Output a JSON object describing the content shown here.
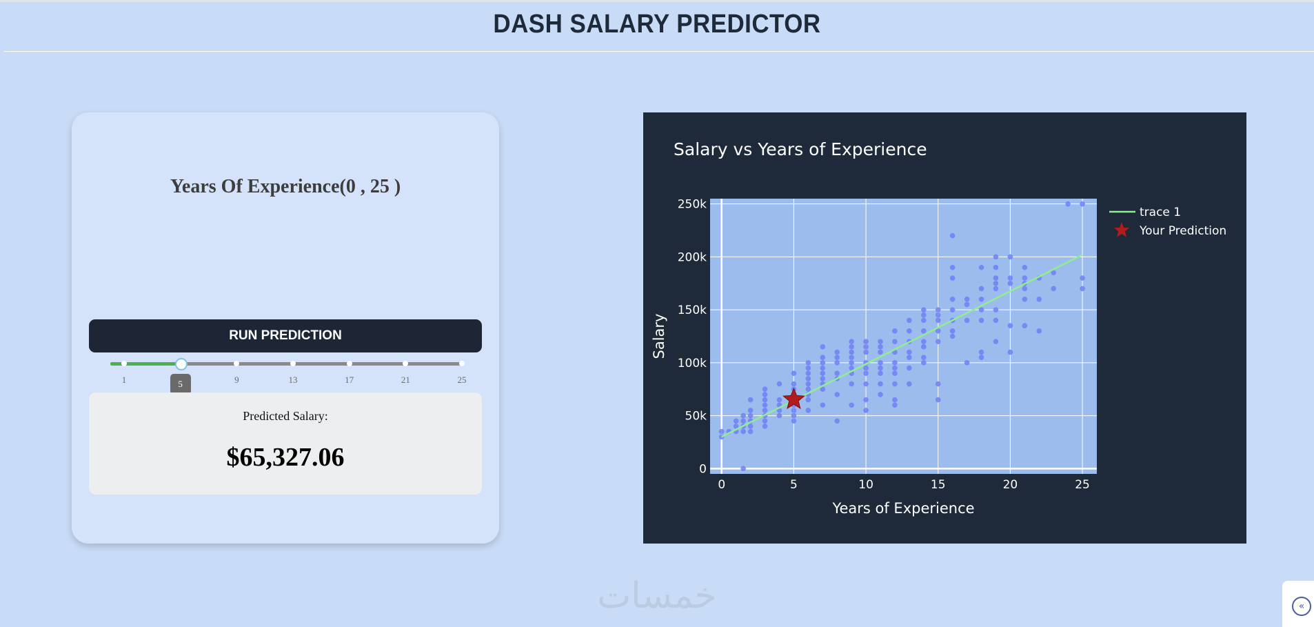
{
  "header": {
    "title": "DASH SALARY PREDICTOR"
  },
  "controls": {
    "experience_label": "Years Of Experience(0 , 25 )",
    "slider": {
      "min": 0,
      "max": 25,
      "value": 5,
      "value_label": "5",
      "marks": [
        "1",
        "5",
        "9",
        "13",
        "17",
        "21",
        "25"
      ],
      "fill_color": "#4caf50"
    },
    "run_button_label": "RUN PREDICTION",
    "result_caption": "Predicted Salary:",
    "result_value": "$65,327.06"
  },
  "chart_data": {
    "type": "scatter",
    "title": "Salary vs Years of Experience",
    "xlabel": "Years of Experience",
    "ylabel": "Salary",
    "xlim": [
      -0.8,
      26
    ],
    "ylim": [
      -5000,
      255000
    ],
    "x_ticks": [
      0,
      5,
      10,
      15,
      20,
      25
    ],
    "x_tick_labels": [
      "0",
      "5",
      "10",
      "15",
      "20",
      "25"
    ],
    "y_ticks": [
      0,
      50000,
      100000,
      150000,
      200000,
      250000
    ],
    "y_tick_labels": [
      "0",
      "50k",
      "100k",
      "150k",
      "200k",
      "250k"
    ],
    "grid": true,
    "legend_position": "top-right",
    "plot_background": "#9dbcee",
    "paper_background": "#1e2a3a",
    "series": [
      {
        "mode": "markers",
        "color": "#6e7ff3",
        "points": [
          [
            0,
            30000
          ],
          [
            0,
            35000
          ],
          [
            0.5,
            35000
          ],
          [
            1,
            35000
          ],
          [
            1,
            40000
          ],
          [
            1,
            45000
          ],
          [
            1.5,
            35000
          ],
          [
            1.5,
            40000
          ],
          [
            1.5,
            45000
          ],
          [
            1.5,
            50000
          ],
          [
            1.5,
            0
          ],
          [
            2,
            35000
          ],
          [
            2,
            40000
          ],
          [
            2,
            45000
          ],
          [
            2,
            50000
          ],
          [
            2,
            55000
          ],
          [
            2,
            65000
          ],
          [
            3,
            40000
          ],
          [
            3,
            45000
          ],
          [
            3,
            50000
          ],
          [
            3,
            55000
          ],
          [
            3,
            60000
          ],
          [
            3,
            65000
          ],
          [
            3,
            70000
          ],
          [
            3,
            75000
          ],
          [
            4,
            50000
          ],
          [
            4,
            55000
          ],
          [
            4,
            60000
          ],
          [
            4,
            65000
          ],
          [
            4,
            80000
          ],
          [
            5,
            45000
          ],
          [
            5,
            50000
          ],
          [
            5,
            55000
          ],
          [
            5,
            60000
          ],
          [
            5,
            70000
          ],
          [
            5,
            75000
          ],
          [
            5,
            80000
          ],
          [
            5,
            90000
          ],
          [
            6,
            55000
          ],
          [
            6,
            65000
          ],
          [
            6,
            70000
          ],
          [
            6,
            75000
          ],
          [
            6,
            80000
          ],
          [
            6,
            85000
          ],
          [
            6,
            90000
          ],
          [
            6,
            95000
          ],
          [
            6,
            100000
          ],
          [
            7,
            60000
          ],
          [
            7,
            75000
          ],
          [
            7,
            80000
          ],
          [
            7,
            85000
          ],
          [
            7,
            90000
          ],
          [
            7,
            95000
          ],
          [
            7,
            100000
          ],
          [
            7,
            105000
          ],
          [
            7,
            115000
          ],
          [
            8,
            45000
          ],
          [
            8,
            70000
          ],
          [
            8,
            85000
          ],
          [
            8,
            90000
          ],
          [
            8,
            100000
          ],
          [
            8,
            105000
          ],
          [
            8,
            110000
          ],
          [
            9,
            60000
          ],
          [
            9,
            80000
          ],
          [
            9,
            90000
          ],
          [
            9,
            95000
          ],
          [
            9,
            100000
          ],
          [
            9,
            105000
          ],
          [
            9,
            110000
          ],
          [
            9,
            115000
          ],
          [
            9,
            120000
          ],
          [
            10,
            55000
          ],
          [
            10,
            65000
          ],
          [
            10,
            80000
          ],
          [
            10,
            90000
          ],
          [
            10,
            95000
          ],
          [
            10,
            100000
          ],
          [
            10,
            110000
          ],
          [
            10,
            115000
          ],
          [
            10,
            120000
          ],
          [
            11,
            70000
          ],
          [
            11,
            80000
          ],
          [
            11,
            90000
          ],
          [
            11,
            95000
          ],
          [
            11,
            100000
          ],
          [
            11,
            110000
          ],
          [
            11,
            115000
          ],
          [
            11,
            120000
          ],
          [
            12,
            60000
          ],
          [
            12,
            65000
          ],
          [
            12,
            80000
          ],
          [
            12,
            90000
          ],
          [
            12,
            95000
          ],
          [
            12,
            100000
          ],
          [
            12,
            110000
          ],
          [
            12,
            120000
          ],
          [
            12,
            130000
          ],
          [
            13,
            80000
          ],
          [
            13,
            95000
          ],
          [
            13,
            105000
          ],
          [
            13,
            110000
          ],
          [
            13,
            120000
          ],
          [
            13,
            130000
          ],
          [
            13,
            140000
          ],
          [
            14,
            100000
          ],
          [
            14,
            105000
          ],
          [
            14,
            115000
          ],
          [
            14,
            120000
          ],
          [
            14,
            130000
          ],
          [
            14,
            140000
          ],
          [
            14,
            145000
          ],
          [
            14,
            150000
          ],
          [
            15,
            65000
          ],
          [
            15,
            80000
          ],
          [
            15,
            120000
          ],
          [
            15,
            130000
          ],
          [
            15,
            140000
          ],
          [
            15,
            145000
          ],
          [
            15,
            150000
          ],
          [
            16,
            125000
          ],
          [
            16,
            130000
          ],
          [
            16,
            140000
          ],
          [
            16,
            150000
          ],
          [
            16,
            160000
          ],
          [
            16,
            180000
          ],
          [
            16,
            190000
          ],
          [
            16,
            220000
          ],
          [
            17,
            100000
          ],
          [
            17,
            140000
          ],
          [
            17,
            155000
          ],
          [
            17,
            160000
          ],
          [
            18,
            105000
          ],
          [
            18,
            110000
          ],
          [
            18,
            140000
          ],
          [
            18,
            150000
          ],
          [
            18,
            160000
          ],
          [
            18,
            170000
          ],
          [
            18,
            190000
          ],
          [
            19,
            120000
          ],
          [
            19,
            140000
          ],
          [
            19,
            150000
          ],
          [
            19,
            170000
          ],
          [
            19,
            175000
          ],
          [
            19,
            180000
          ],
          [
            19,
            190000
          ],
          [
            19,
            200000
          ],
          [
            20,
            110000
          ],
          [
            20,
            135000
          ],
          [
            20,
            175000
          ],
          [
            20,
            180000
          ],
          [
            20,
            200000
          ],
          [
            21,
            135000
          ],
          [
            21,
            160000
          ],
          [
            21,
            170000
          ],
          [
            21,
            175000
          ],
          [
            21,
            180000
          ],
          [
            21,
            190000
          ],
          [
            22,
            130000
          ],
          [
            22,
            160000
          ],
          [
            22,
            180000
          ],
          [
            23,
            170000
          ],
          [
            23,
            185000
          ],
          [
            24,
            250000
          ],
          [
            25,
            170000
          ],
          [
            25,
            180000
          ],
          [
            25,
            250000
          ]
        ]
      },
      {
        "name": "trace 1",
        "mode": "lines",
        "color": "#90ee90",
        "x": [
          0,
          25
        ],
        "y": [
          30000,
          202000
        ]
      },
      {
        "name": "Your Prediction",
        "mode": "markers",
        "marker": "star",
        "color": "#b11c1c",
        "x": [
          5
        ],
        "y": [
          65327.06
        ]
      }
    ]
  },
  "footer": {
    "watermark_text": "خمسات",
    "collapse_icon": "«"
  }
}
